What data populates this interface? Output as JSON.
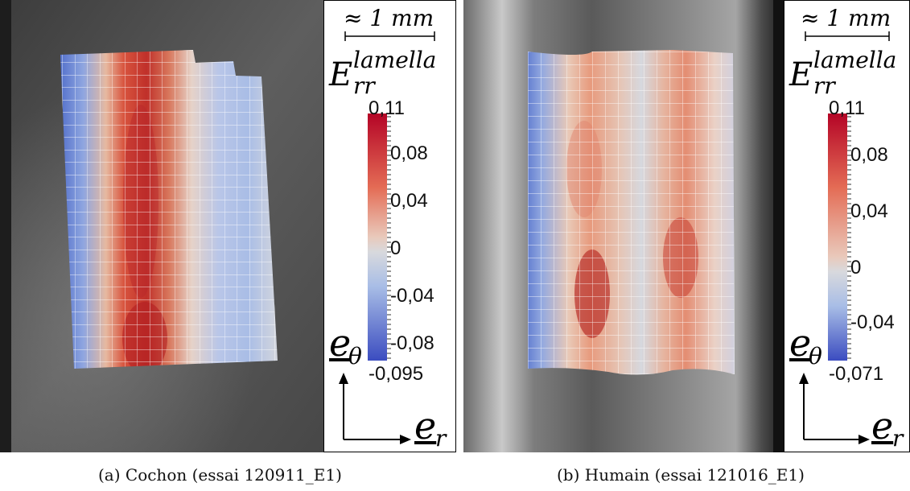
{
  "colors": {
    "cmap_blue": "#3b4cc0",
    "cmap_white": "#dddddd",
    "cmap_red": "#b40426",
    "grid": "#ffffff",
    "photo_dark": "#555555"
  },
  "panels": [
    {
      "id": "a",
      "scale_label": "≈ 1 mm",
      "var_symbol": "E",
      "var_superscript": "lamella",
      "var_subscript": "rr",
      "colorbar": {
        "max_label": "0,11",
        "tick_labels": [
          "0,08",
          "0,04",
          "0",
          "-0,04",
          "-0,08"
        ],
        "min_label": "-0,095",
        "min": -0.095,
        "max": 0.11,
        "ticks": [
          0.11,
          0.08,
          0.04,
          0,
          -0.04,
          -0.08,
          -0.095
        ]
      },
      "axis_theta": {
        "symbol": "e",
        "subscript": "θ"
      },
      "axis_r": {
        "symbol": "e",
        "subscript": "r"
      },
      "caption": "(a) Cochon (essai 120911_E1)"
    },
    {
      "id": "b",
      "scale_label": "≈ 1 mm",
      "var_symbol": "E",
      "var_superscript": "lamella",
      "var_subscript": "rr",
      "colorbar": {
        "max_label": "0,11",
        "tick_labels": [
          "0,08",
          "0,04",
          "0",
          "-0,04"
        ],
        "min_label": "-0,071",
        "min": -0.071,
        "max": 0.11,
        "ticks": [
          0.11,
          0.08,
          0.04,
          0,
          -0.04,
          -0.071
        ]
      },
      "axis_theta": {
        "symbol": "e",
        "subscript": "θ"
      },
      "axis_r": {
        "symbol": "e",
        "subscript": "r"
      },
      "caption": "(b) Humain (essai 121016_E1)"
    }
  ]
}
